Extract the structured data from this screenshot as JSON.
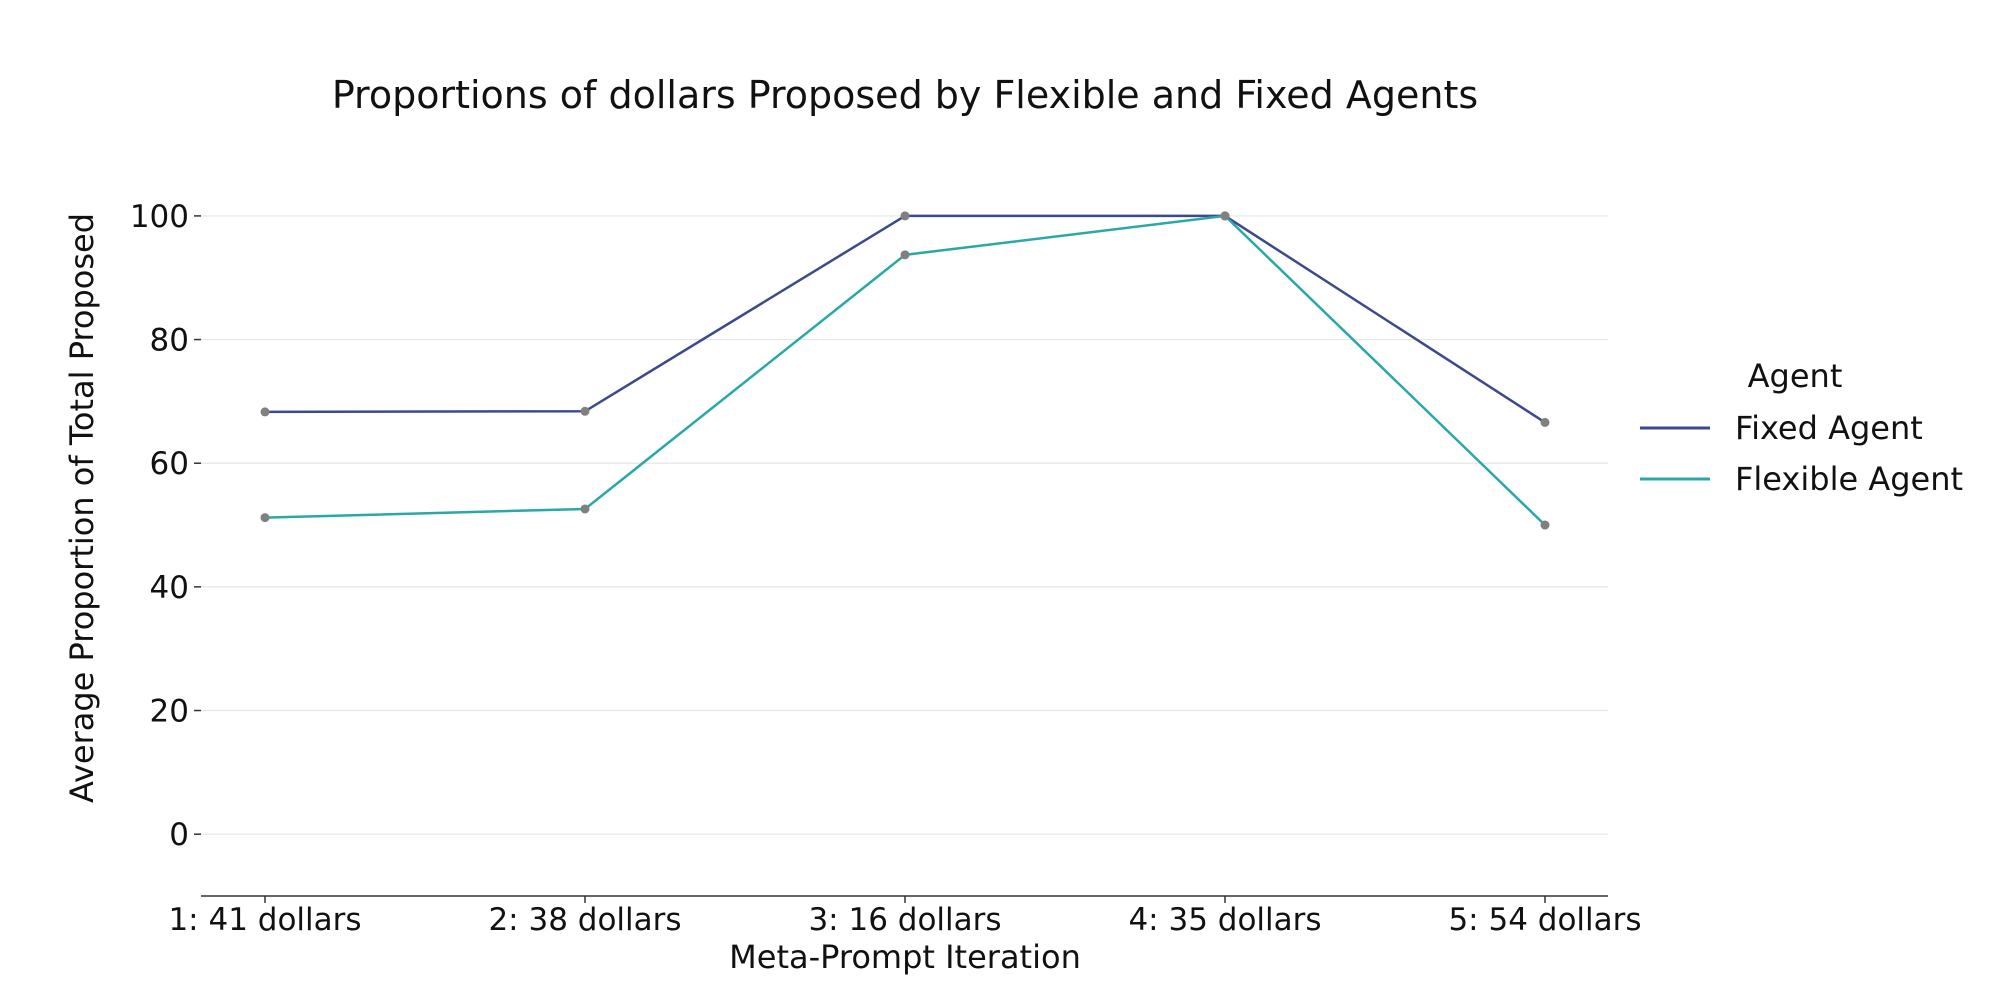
{
  "chart_data": {
    "type": "line",
    "title": "Proportions of dollars Proposed by Flexible and Fixed Agents",
    "xlabel": "Meta-Prompt Iteration",
    "ylabel": "Average Proportion of Total Proposed",
    "categories": [
      "1: 41 dollars",
      "2: 38 dollars",
      "3: 16 dollars",
      "4: 35 dollars",
      "5: 54 dollars"
    ],
    "yticks": [
      0,
      20,
      40,
      60,
      80,
      100
    ],
    "ylim": [
      -10,
      105
    ],
    "grid": true,
    "legend": {
      "title": "Agent",
      "placement": "right"
    },
    "series": [
      {
        "name": "Fixed Agent",
        "color": "#3b4a8c",
        "values": [
          68.3,
          68.4,
          100,
          100,
          66.6
        ]
      },
      {
        "name": "Flexible Agent",
        "color": "#2aa8a8",
        "values": [
          51.2,
          52.6,
          93.7,
          100,
          50.0
        ]
      }
    ],
    "marker_color": "#808080"
  }
}
